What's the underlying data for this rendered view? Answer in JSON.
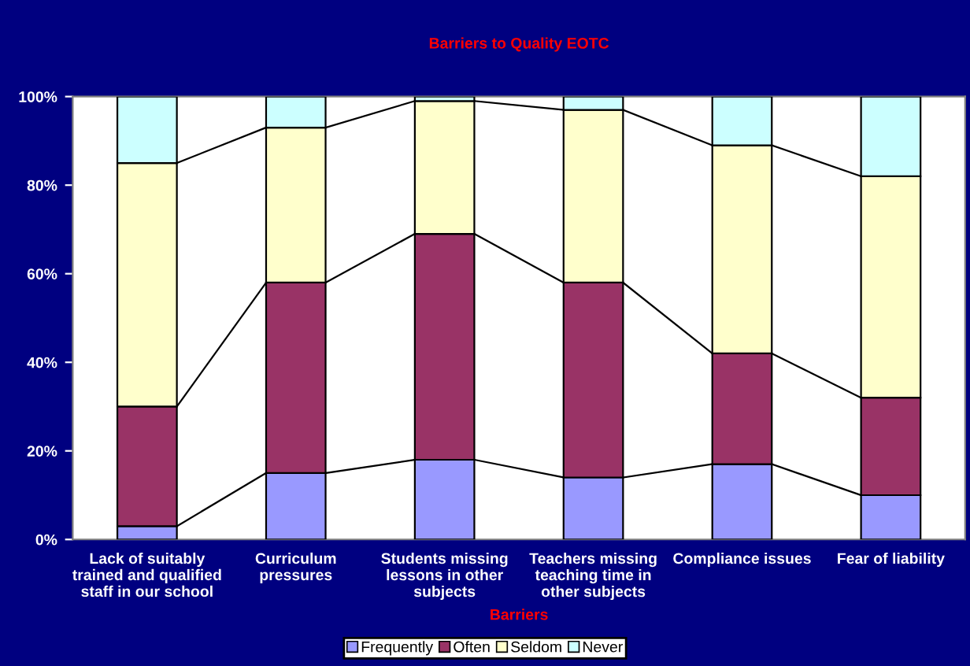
{
  "chart_data": {
    "type": "bar",
    "title": "Barriers to Quality EOTC",
    "xlabel": "Barriers",
    "stacked": true,
    "categories": [
      "Lack of suitably\ntrained and qualified\nstaff in our school",
      "Curriculum\npressures",
      "Students missing\nlessons in other\nsubjects",
      "Teachers missing\nteaching time in\nother subjects",
      "Compliance issues",
      "Fear of liability"
    ],
    "series": [
      {
        "name": "Frequently",
        "color": "#9999ff",
        "values": [
          3,
          15,
          18,
          14,
          17,
          10
        ]
      },
      {
        "name": "Often",
        "color": "#993366",
        "values": [
          27,
          43,
          51,
          44,
          25,
          22
        ]
      },
      {
        "name": "Seldom",
        "color": "#ffffcc",
        "values": [
          55,
          35,
          30,
          39,
          47,
          50
        ]
      },
      {
        "name": "Never",
        "color": "#ccffff",
        "values": [
          15,
          7,
          1,
          3,
          11,
          18
        ]
      }
    ],
    "ylim": [
      0,
      100
    ],
    "yticks": [
      {
        "value": 0,
        "label": "0%"
      },
      {
        "value": 20,
        "label": "20%"
      },
      {
        "value": 40,
        "label": "40%"
      },
      {
        "value": 60,
        "label": "60%"
      },
      {
        "value": 80,
        "label": "80%"
      },
      {
        "value": 100,
        "label": "100%"
      }
    ],
    "grid": false,
    "legend": "bottom"
  }
}
